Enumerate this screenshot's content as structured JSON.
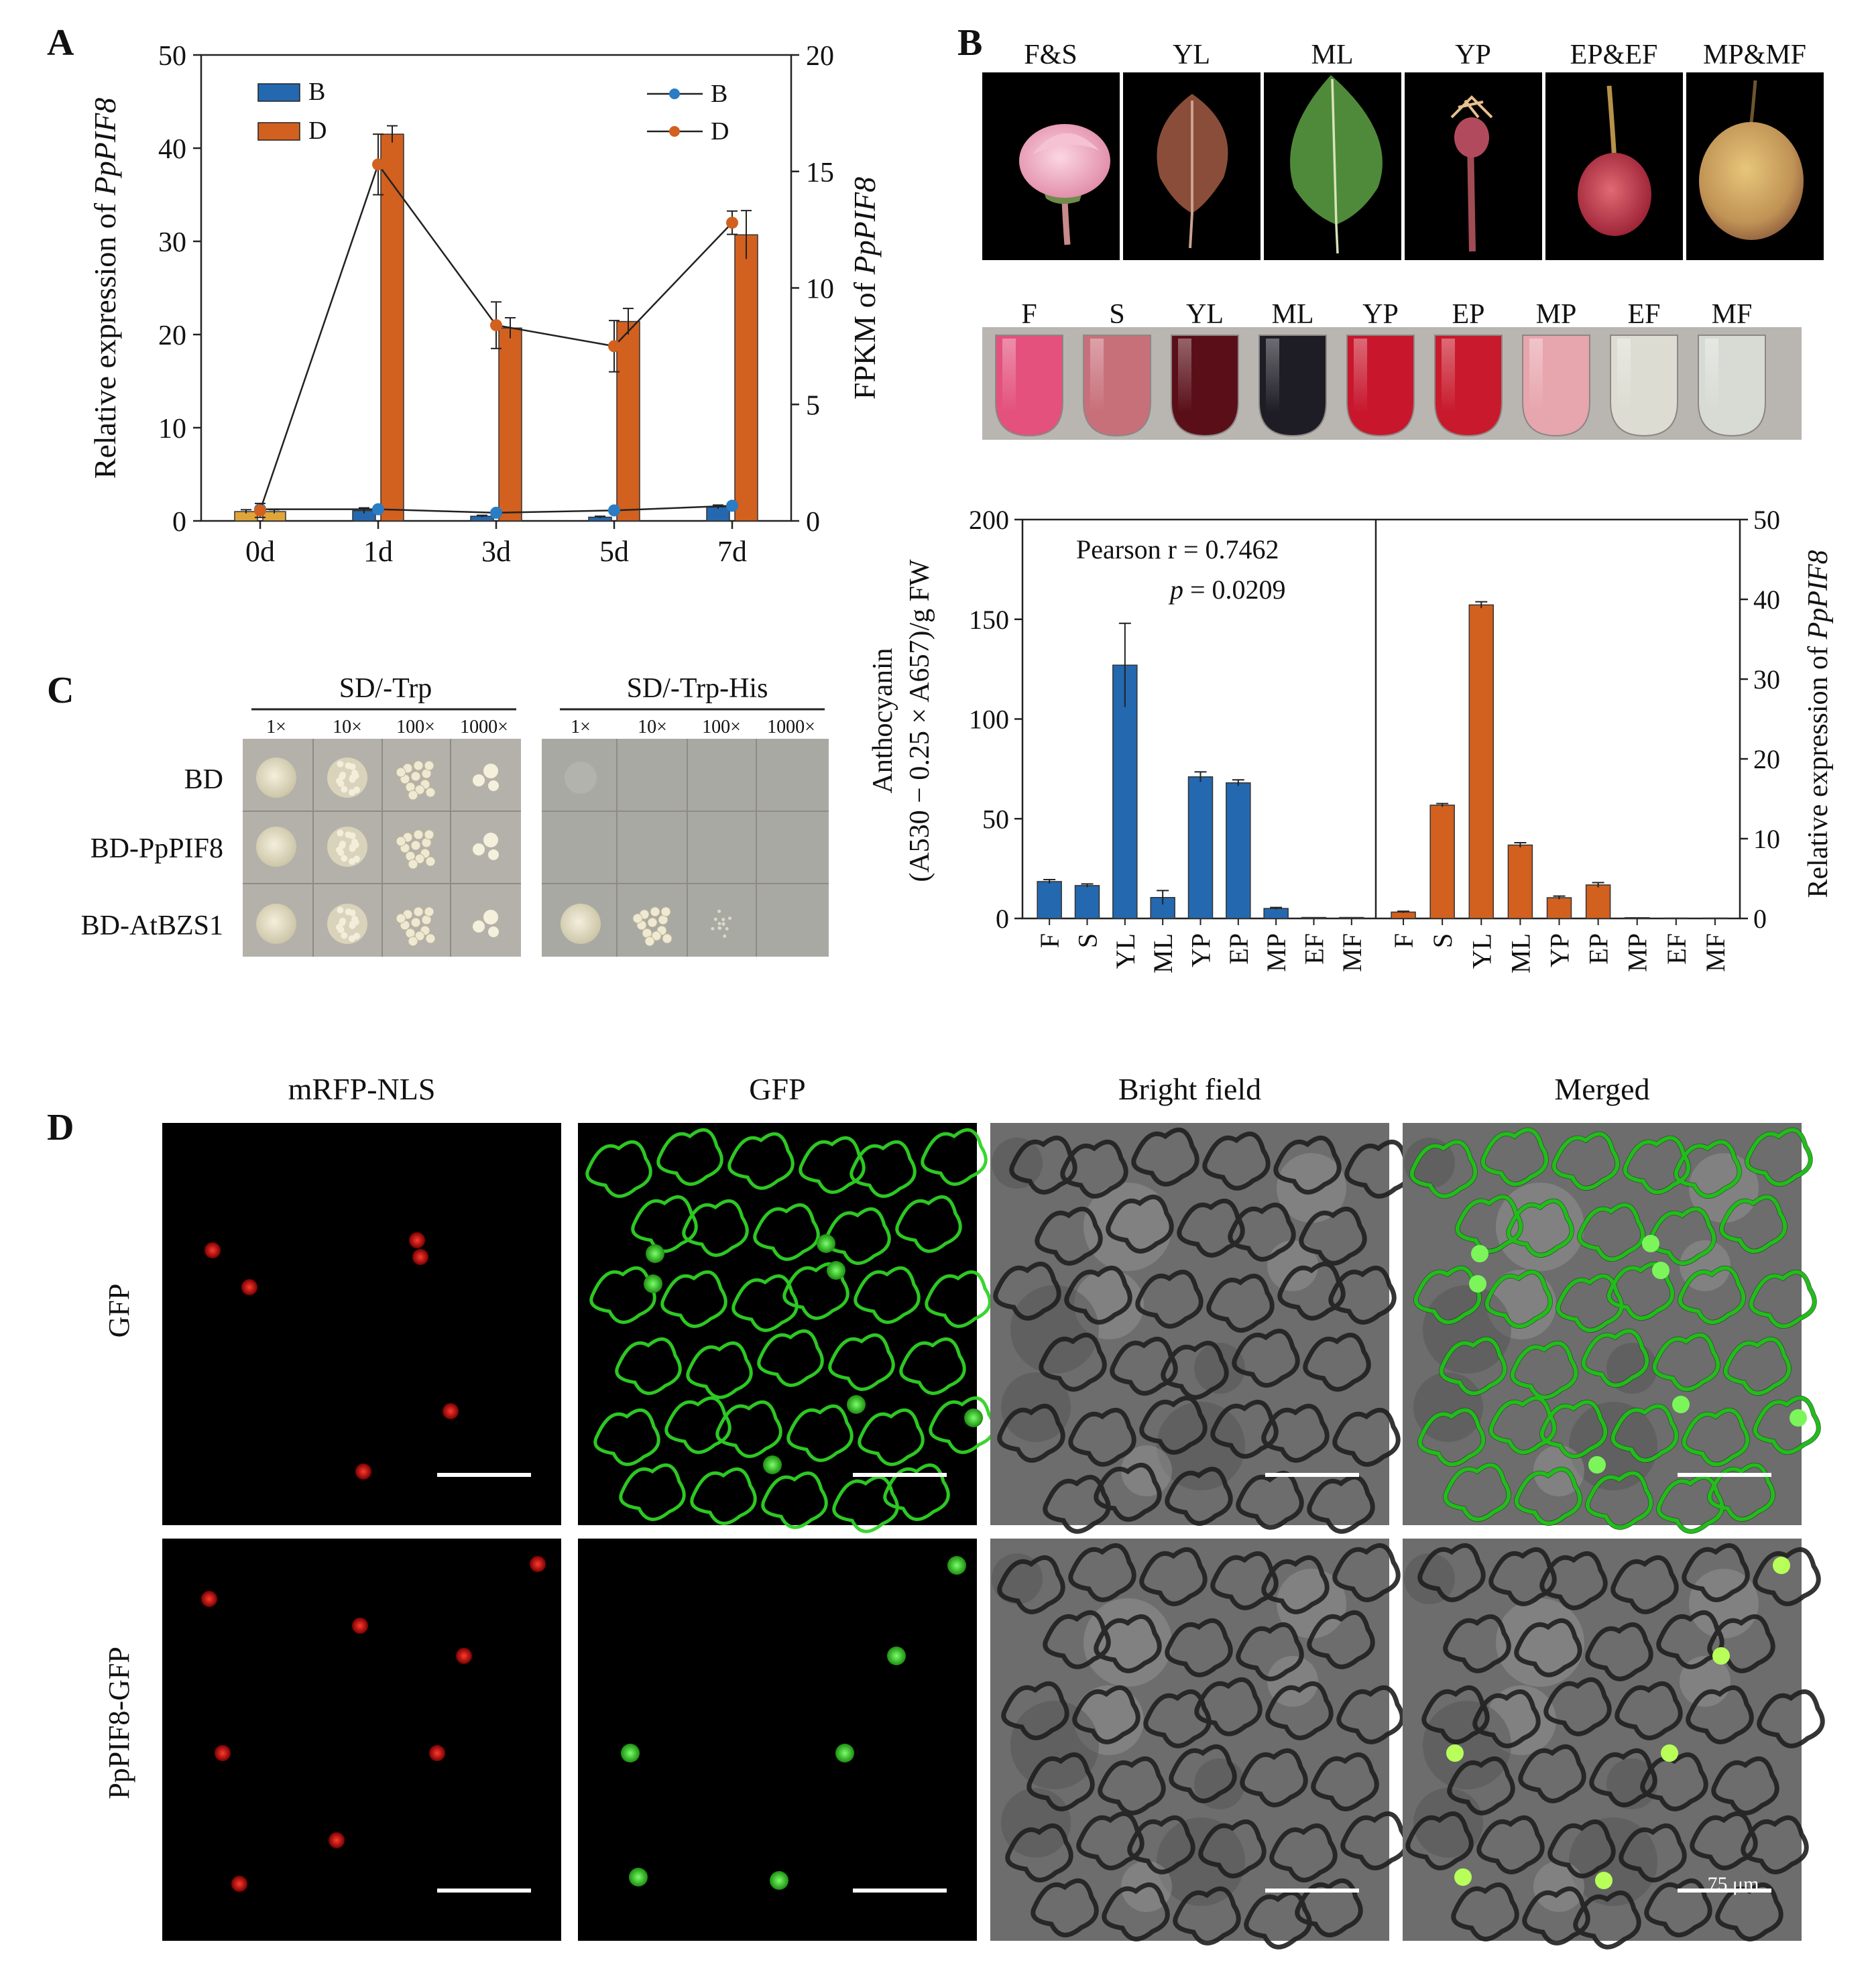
{
  "panels": {
    "A": {
      "letter": "A",
      "left_axis_label_prefix": "Relative expression of ",
      "right_axis_label_prefix": "FPKM of ",
      "gene": "PpPIF8",
      "left_ticks": [
        "0",
        "10",
        "20",
        "30",
        "40",
        "50"
      ],
      "right_ticks": [
        "0",
        "5",
        "10",
        "15",
        "20"
      ],
      "bar_legend": [
        {
          "name": "B",
          "color": "#2468b0"
        },
        {
          "name": "D",
          "color": "#d2601f"
        }
      ],
      "line_legend": [
        {
          "name": "B",
          "color": "#2a7cc4"
        },
        {
          "name": "D",
          "color": "#d2601f"
        }
      ]
    },
    "B": {
      "letter": "B",
      "photo_labels": [
        "F&S",
        "YL",
        "ML",
        "YP",
        "EP&EF",
        "MP&MF"
      ],
      "tube_labels": [
        "F",
        "S",
        "YL",
        "ML",
        "YP",
        "EP",
        "MP",
        "EF",
        "MF"
      ],
      "left_axis_label_line1": "Anthocyanin",
      "left_axis_label_line2": "(A530 − 0.25 × A657)/g FW",
      "right_axis_label_prefix": "Relative expression of ",
      "gene": "PpPIF8",
      "left_ticks": [
        "0",
        "50",
        "100",
        "150",
        "200"
      ],
      "right_ticks": [
        "0",
        "10",
        "20",
        "30",
        "40",
        "50"
      ],
      "pearson_text": "Pearson r = 0.7462",
      "p_symbol": "p",
      "p_value": " = 0.0209"
    },
    "C": {
      "letter": "C",
      "groups": [
        "SD/-Trp",
        "SD/-Trp-His"
      ],
      "dilutions": [
        "1×",
        "10×",
        "100×",
        "1000×"
      ],
      "rows": [
        "BD",
        "BD-PpPIF8",
        "BD-AtBZS1"
      ]
    },
    "D": {
      "letter": "D",
      "columns": [
        "mRFP-NLS",
        "GFP",
        "Bright field",
        "Merged"
      ],
      "rows": [
        "GFP",
        "PpPIF8-GFP"
      ],
      "scale_label": "75 μm"
    }
  },
  "chart_data": [
    {
      "type": "bar",
      "panel": "A",
      "categories": [
        "0d",
        "1d",
        "3d",
        "5d",
        "7d"
      ],
      "ylim": [
        0,
        50
      ],
      "y2lim": [
        0,
        20
      ],
      "series": [
        {
          "name": "B",
          "axis": "left",
          "kind": "bar",
          "values": [
            1.0,
            1.1,
            0.5,
            0.4,
            1.5
          ],
          "errors": [
            0.2,
            0.3,
            0.1,
            0.1,
            0.2
          ]
        },
        {
          "name": "D",
          "axis": "left",
          "kind": "bar",
          "values": [
            1.0,
            41.5,
            20.7,
            21.4,
            30.7
          ],
          "errors": [
            0.2,
            0.9,
            1.1,
            1.4,
            2.6
          ]
        },
        {
          "name": "B",
          "axis": "right",
          "kind": "line",
          "values": [
            0.5,
            0.5,
            0.35,
            0.45,
            0.65
          ],
          "errors": [
            0,
            0,
            0,
            0,
            0
          ]
        },
        {
          "name": "D",
          "axis": "right",
          "kind": "line",
          "values": [
            0.45,
            15.3,
            8.4,
            7.5,
            12.8
          ],
          "errors": [
            0.3,
            1.3,
            1.0,
            1.1,
            0.5
          ]
        }
      ]
    },
    {
      "type": "bar",
      "panel": "B",
      "categories": [
        "F",
        "S",
        "YL",
        "ML",
        "YP",
        "EP",
        "MP",
        "EF",
        "MF"
      ],
      "ylim": [
        0,
        200
      ],
      "y2lim": [
        0,
        50
      ],
      "series": [
        {
          "axis": "left",
          "color": "#2468b0",
          "values": [
            18.5,
            16.5,
            127,
            10.5,
            71,
            68,
            5,
            0.5,
            0.5
          ],
          "errors": [
            1,
            0.8,
            21,
            3.5,
            2.5,
            1.5,
            0.5,
            0,
            0
          ]
        },
        {
          "axis": "right",
          "color": "#d2601f",
          "values": [
            0.8,
            14.2,
            39.3,
            9.2,
            2.6,
            4.2,
            0.1,
            0.05,
            0.05
          ],
          "errors": [
            0.1,
            0.2,
            0.4,
            0.3,
            0.2,
            0.3,
            0,
            0,
            0
          ]
        }
      ]
    }
  ]
}
